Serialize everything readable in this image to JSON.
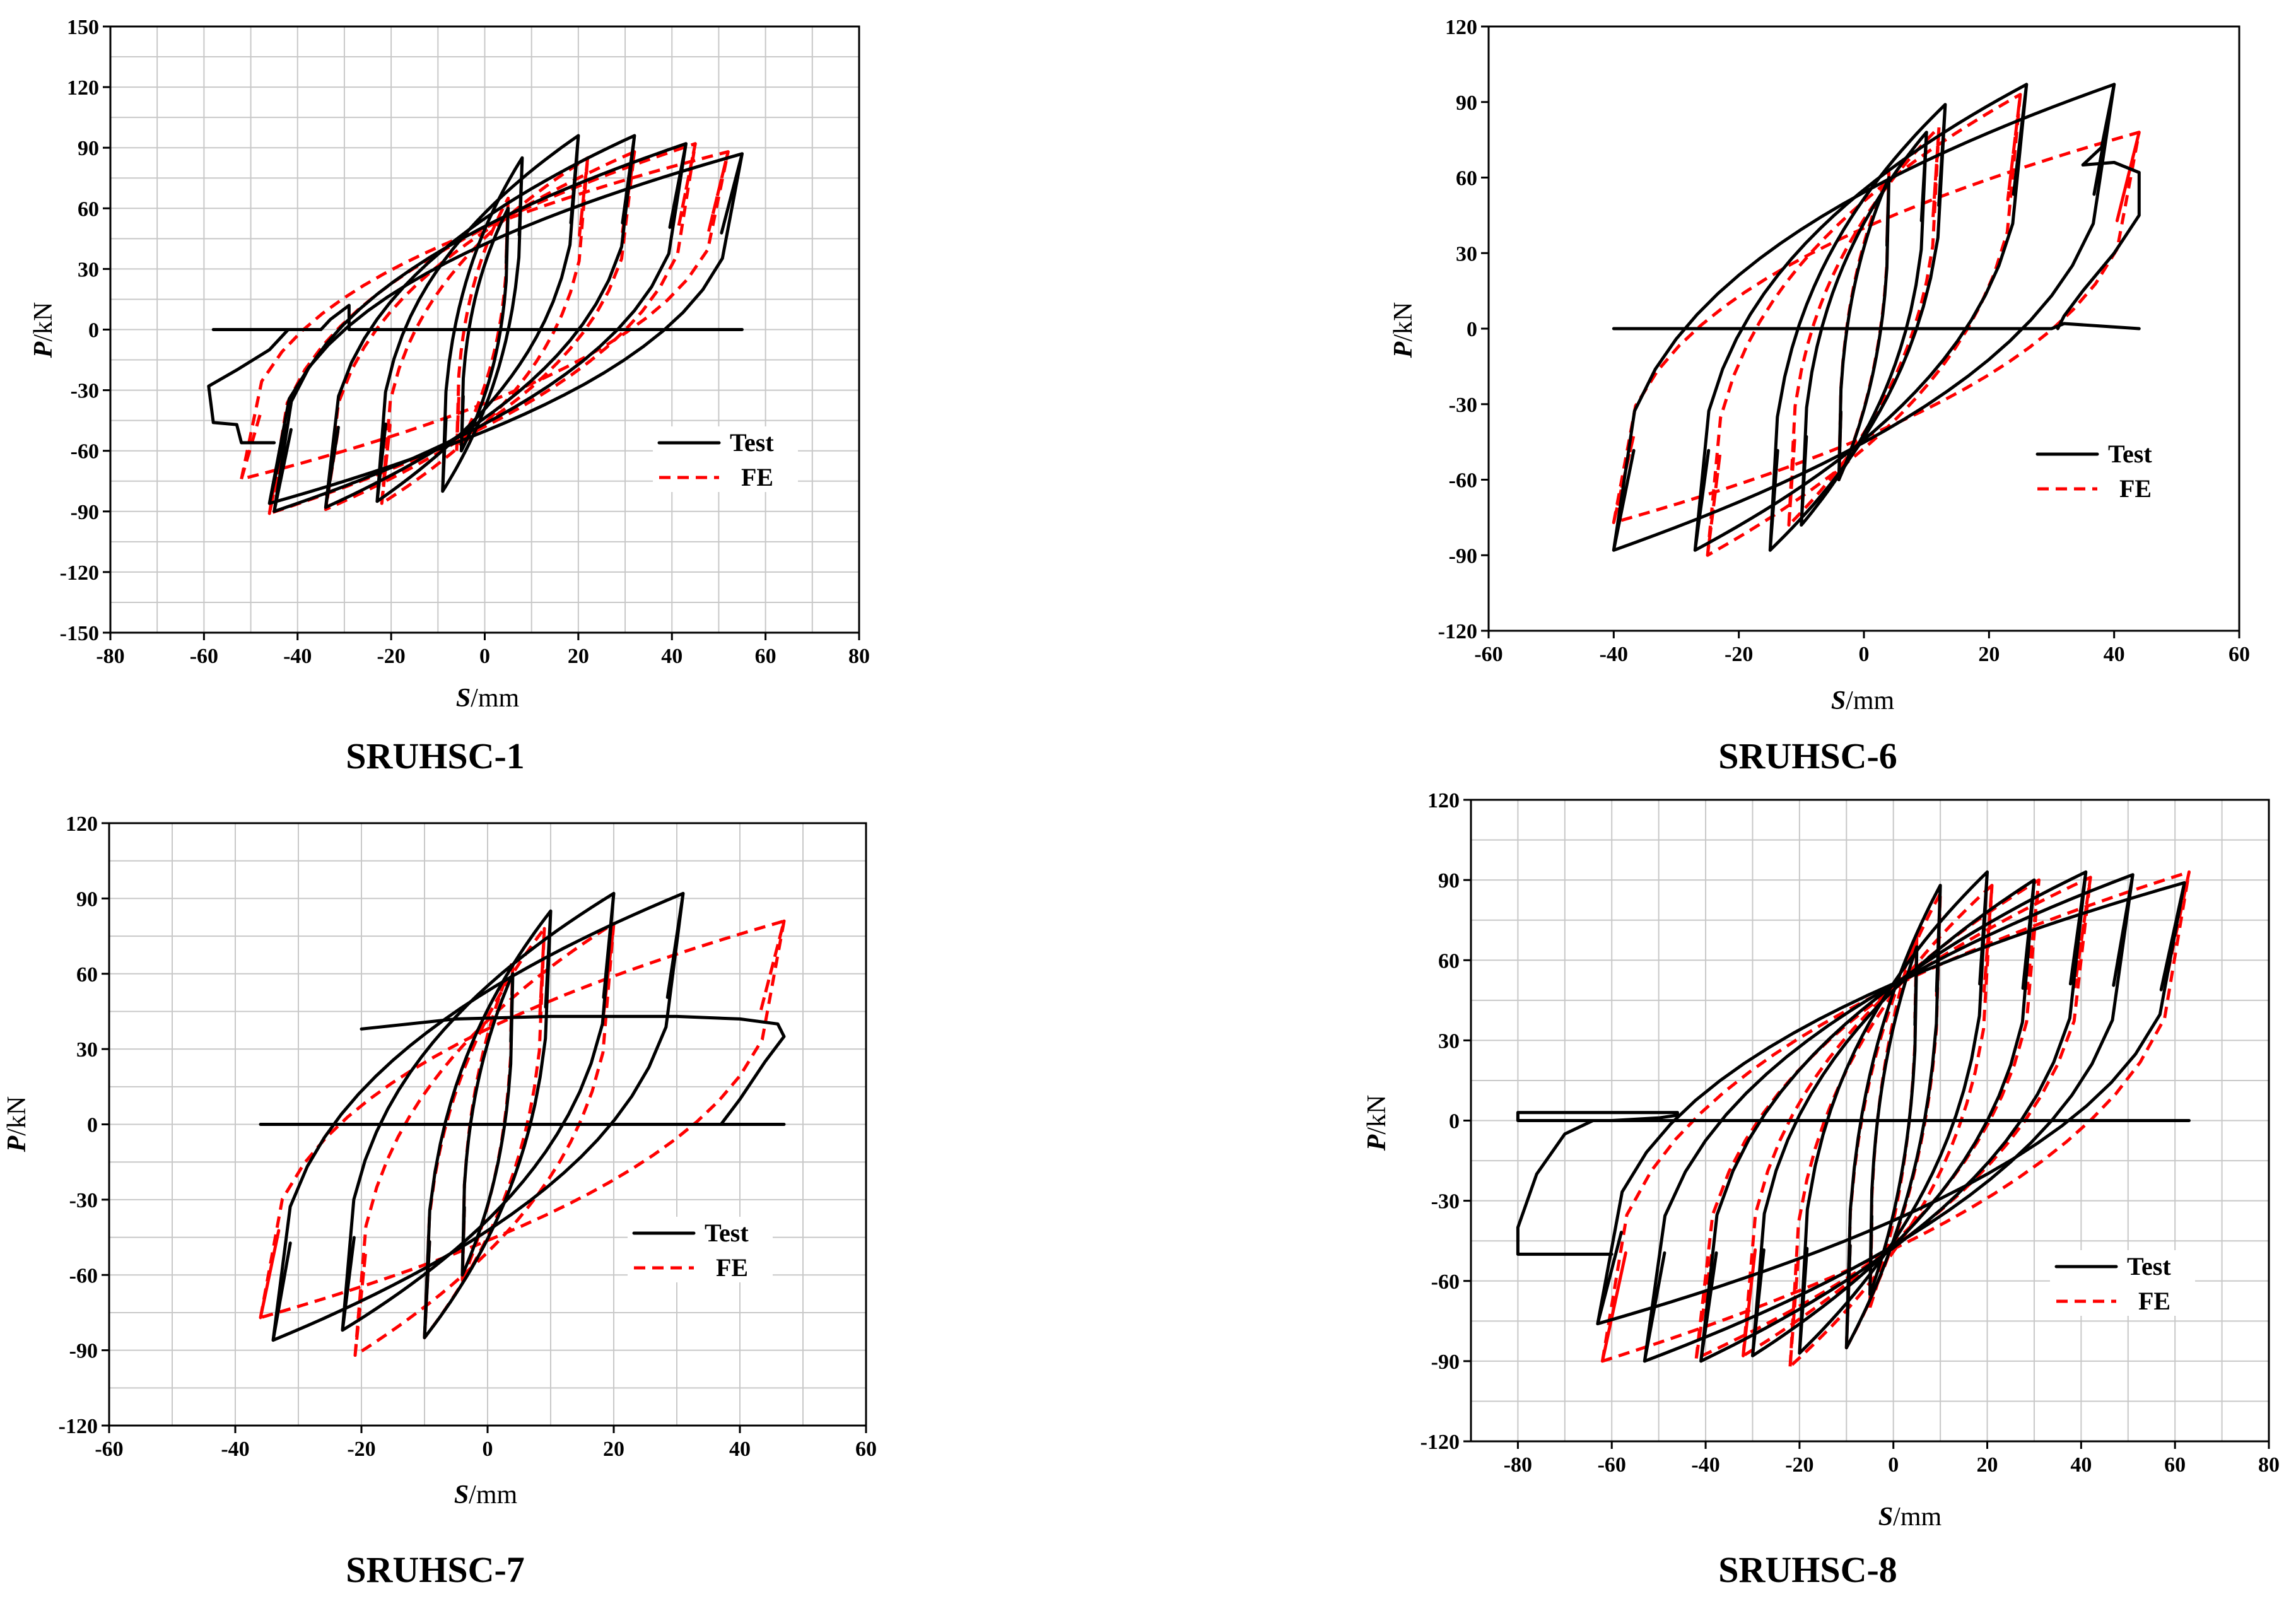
{
  "figure": {
    "panels": [
      {
        "caption": "SRUHSC-1"
      },
      {
        "caption": "SRUHSC-6"
      },
      {
        "caption": "SRUHSC-7"
      },
      {
        "caption": "SRUHSC-8"
      }
    ]
  },
  "colors": {
    "test": "#000000",
    "fe": "#ff0000",
    "grid": "#c8c8c8"
  },
  "chart_data": [
    {
      "type": "line",
      "title": "SRUHSC-1",
      "xlabel_italic": "S",
      "xlabel_unit": "/mm",
      "ylabel_italic": "P",
      "ylabel_unit": "/kN",
      "xlim": [
        -80,
        80
      ],
      "ylim": [
        -150,
        150
      ],
      "xticks": [
        -80,
        -60,
        -40,
        -20,
        0,
        20,
        40,
        60,
        80
      ],
      "yticks": [
        -150,
        -120,
        -90,
        -60,
        -30,
        0,
        30,
        60,
        90,
        120,
        150
      ],
      "grid": true,
      "legend_position": "lower-right",
      "legend": [
        "Test",
        "FE"
      ],
      "series": [
        {
          "name": "Test",
          "style": "solid",
          "cycles": [
            {
              "umax": 5,
              "pmax": 60,
              "umin": -5,
              "pmin": -60
            },
            {
              "umax": 8,
              "pmax": 85,
              "umin": -9,
              "pmin": -80
            },
            {
              "umax": 20,
              "pmax": 96,
              "umin": -23,
              "pmin": -85
            },
            {
              "umax": 32,
              "pmax": 96,
              "umin": -34,
              "pmin": -88
            },
            {
              "umax": 43,
              "pmax": 92,
              "umin": -45,
              "pmin": -90
            },
            {
              "umax": 55,
              "pmax": 87,
              "umin": -46,
              "pmin": -86
            }
          ],
          "trace": [
            [
              -58,
              0
            ],
            [
              -45,
              0
            ],
            [
              -35,
              0
            ],
            [
              -33,
              5
            ],
            [
              -29,
              12
            ],
            [
              -29,
              0
            ],
            [
              0,
              0
            ],
            [
              30,
              0
            ],
            [
              55,
              0
            ]
          ],
          "tail": [
            [
              -45,
              -56
            ],
            [
              -52,
              -56
            ],
            [
              -53,
              -47
            ],
            [
              -58,
              -46
            ],
            [
              -59,
              -28
            ],
            [
              -53,
              -20
            ],
            [
              -46,
              -10
            ],
            [
              -42,
              0
            ]
          ]
        },
        {
          "name": "FE",
          "style": "dashed",
          "cycles": [
            {
              "umax": 5,
              "pmax": 65,
              "umin": -6,
              "pmin": -60
            },
            {
              "umax": 22,
              "pmax": 85,
              "umin": -22,
              "pmin": -86
            },
            {
              "umax": 32,
              "pmax": 88,
              "umin": -34,
              "pmin": -89
            },
            {
              "umax": 45,
              "pmax": 92,
              "umin": -46,
              "pmin": -91
            },
            {
              "umax": 52,
              "pmax": 88,
              "umin": -52,
              "pmin": -74
            }
          ]
        }
      ]
    },
    {
      "type": "line",
      "title": "SRUHSC-6",
      "xlabel_italic": "S",
      "xlabel_unit": "/mm",
      "ylabel_italic": "P",
      "ylabel_unit": "/kN",
      "xlim": [
        -60,
        60
      ],
      "ylim": [
        -120,
        120
      ],
      "xticks": [
        -60,
        -40,
        -20,
        0,
        20,
        40,
        60
      ],
      "yticks": [
        -120,
        -90,
        -60,
        -30,
        0,
        30,
        60,
        90,
        120
      ],
      "grid": false,
      "legend_position": "lower-right",
      "legend": [
        "Test",
        "FE"
      ],
      "series": [
        {
          "name": "Test",
          "style": "solid",
          "cycles": [
            {
              "umax": 4,
              "pmax": 60,
              "umin": -4,
              "pmin": -60
            },
            {
              "umax": 10,
              "pmax": 78,
              "umin": -10,
              "pmin": -78
            },
            {
              "umax": 13,
              "pmax": 89,
              "umin": -15,
              "pmin": -88
            },
            {
              "umax": 26,
              "pmax": 97,
              "umin": -27,
              "pmin": -88
            },
            {
              "umax": 40,
              "pmax": 97,
              "umin": -40,
              "pmin": -88
            }
          ],
          "trace": [
            [
              -40,
              0
            ],
            [
              0,
              0
            ],
            [
              30,
              0
            ],
            [
              32,
              2
            ],
            [
              44,
              0
            ]
          ],
          "tail": [
            [
              40,
              97
            ],
            [
              38,
              72
            ],
            [
              35,
              65
            ],
            [
              40,
              66
            ],
            [
              44,
              62
            ],
            [
              44,
              45
            ],
            [
              40,
              30
            ],
            [
              35,
              15
            ],
            [
              32,
              5
            ],
            [
              31,
              0
            ]
          ]
        },
        {
          "name": "FE",
          "style": "dashed",
          "cycles": [
            {
              "umax": 4,
              "pmax": 62,
              "umin": -4,
              "pmin": -60
            },
            {
              "umax": 12,
              "pmax": 80,
              "umin": -12,
              "pmin": -78
            },
            {
              "umax": 25,
              "pmax": 93,
              "umin": -25,
              "pmin": -90
            },
            {
              "umax": 44,
              "pmax": 78,
              "umin": -40,
              "pmin": -77
            }
          ]
        }
      ]
    },
    {
      "type": "line",
      "title": "SRUHSC-7",
      "xlabel_italic": "S",
      "xlabel_unit": "/mm",
      "ylabel_italic": "P",
      "ylabel_unit": "/kN",
      "xlim": [
        -60,
        60
      ],
      "ylim": [
        -120,
        120
      ],
      "xticks": [
        -60,
        -40,
        -20,
        0,
        20,
        40,
        60
      ],
      "yticks": [
        -120,
        -90,
        -60,
        -30,
        0,
        30,
        60,
        90,
        120
      ],
      "grid": true,
      "legend_position": "lower-right",
      "legend": [
        "Test",
        "FE"
      ],
      "series": [
        {
          "name": "Test",
          "style": "solid",
          "cycles": [
            {
              "umax": 4,
              "pmax": 60,
              "umin": -4,
              "pmin": -60
            },
            {
              "umax": 10,
              "pmax": 85,
              "umin": -10,
              "pmin": -85
            },
            {
              "umax": 20,
              "pmax": 92,
              "umin": -23,
              "pmin": -82
            },
            {
              "umax": 31,
              "pmax": 92,
              "umin": -34,
              "pmin": -86
            }
          ],
          "trace": [
            [
              -36,
              0
            ],
            [
              0,
              0
            ],
            [
              37,
              0
            ],
            [
              47,
              0
            ]
          ],
          "tail": [
            [
              -20,
              38
            ],
            [
              -5,
              42
            ],
            [
              10,
              43
            ],
            [
              30,
              43
            ],
            [
              40,
              42
            ],
            [
              46,
              40
            ],
            [
              47,
              35
            ],
            [
              44,
              25
            ],
            [
              40,
              10
            ],
            [
              37,
              0
            ]
          ]
        },
        {
          "name": "FE",
          "style": "dashed",
          "cycles": [
            {
              "umax": 4,
              "pmax": 65,
              "umin": -4,
              "pmin": -62
            },
            {
              "umax": 9,
              "pmax": 78,
              "umin": -10,
              "pmin": -85
            },
            {
              "umax": 20,
              "pmax": 80,
              "umin": -21,
              "pmin": -92
            },
            {
              "umax": 47,
              "pmax": 81,
              "umin": -36,
              "pmin": -77
            }
          ]
        }
      ]
    },
    {
      "type": "line",
      "title": "SRUHSC-8",
      "xlabel_italic": "S",
      "xlabel_unit": "/mm",
      "ylabel_italic": "P",
      "ylabel_unit": "/kN",
      "xlim": [
        -90,
        80
      ],
      "ylim": [
        -120,
        120
      ],
      "xticks": [
        -80,
        -60,
        -40,
        -20,
        0,
        20,
        40,
        60,
        80
      ],
      "yticks": [
        -120,
        -90,
        -60,
        -30,
        0,
        30,
        60,
        90,
        120
      ],
      "grid": true,
      "legend_position": "lower-right",
      "legend": [
        "Test",
        "FE"
      ],
      "series": [
        {
          "name": "Test",
          "style": "solid",
          "cycles": [
            {
              "umax": 5,
              "pmax": 65,
              "umin": -5,
              "pmin": -65
            },
            {
              "umax": 10,
              "pmax": 88,
              "umin": -10,
              "pmin": -85
            },
            {
              "umax": 20,
              "pmax": 93,
              "umin": -20,
              "pmin": -87
            },
            {
              "umax": 30,
              "pmax": 90,
              "umin": -30,
              "pmin": -88
            },
            {
              "umax": 41,
              "pmax": 93,
              "umin": -41,
              "pmin": -90
            },
            {
              "umax": 51,
              "pmax": 92,
              "umin": -53,
              "pmin": -90
            },
            {
              "umax": 62,
              "pmax": 89,
              "umin": -63,
              "pmin": -76
            }
          ],
          "trace": [
            [
              -80,
              0
            ],
            [
              -60,
              0
            ],
            [
              -50,
              1
            ],
            [
              -46,
              2
            ],
            [
              -46,
              3
            ],
            [
              -80,
              3
            ],
            [
              -80,
              0
            ],
            [
              0,
              0
            ],
            [
              40,
              0
            ],
            [
              63,
              0
            ]
          ],
          "tail": [
            [
              -60,
              -50
            ],
            [
              -80,
              -50
            ],
            [
              -80,
              -40
            ],
            [
              -76,
              -20
            ],
            [
              -70,
              -5
            ],
            [
              -64,
              0
            ]
          ]
        },
        {
          "name": "FE",
          "style": "dashed",
          "cycles": [
            {
              "umax": 5,
              "pmax": 70,
              "umin": -5,
              "pmin": -70
            },
            {
              "umax": 10,
              "pmax": 85,
              "umin": -10,
              "pmin": -85
            },
            {
              "umax": 21,
              "pmax": 88,
              "umin": -22,
              "pmin": -92
            },
            {
              "umax": 31,
              "pmax": 90,
              "umin": -32,
              "pmin": -88
            },
            {
              "umax": 42,
              "pmax": 91,
              "umin": -42,
              "pmin": -89
            },
            {
              "umax": 63,
              "pmax": 93,
              "umin": -62,
              "pmin": -90
            }
          ]
        }
      ]
    }
  ]
}
